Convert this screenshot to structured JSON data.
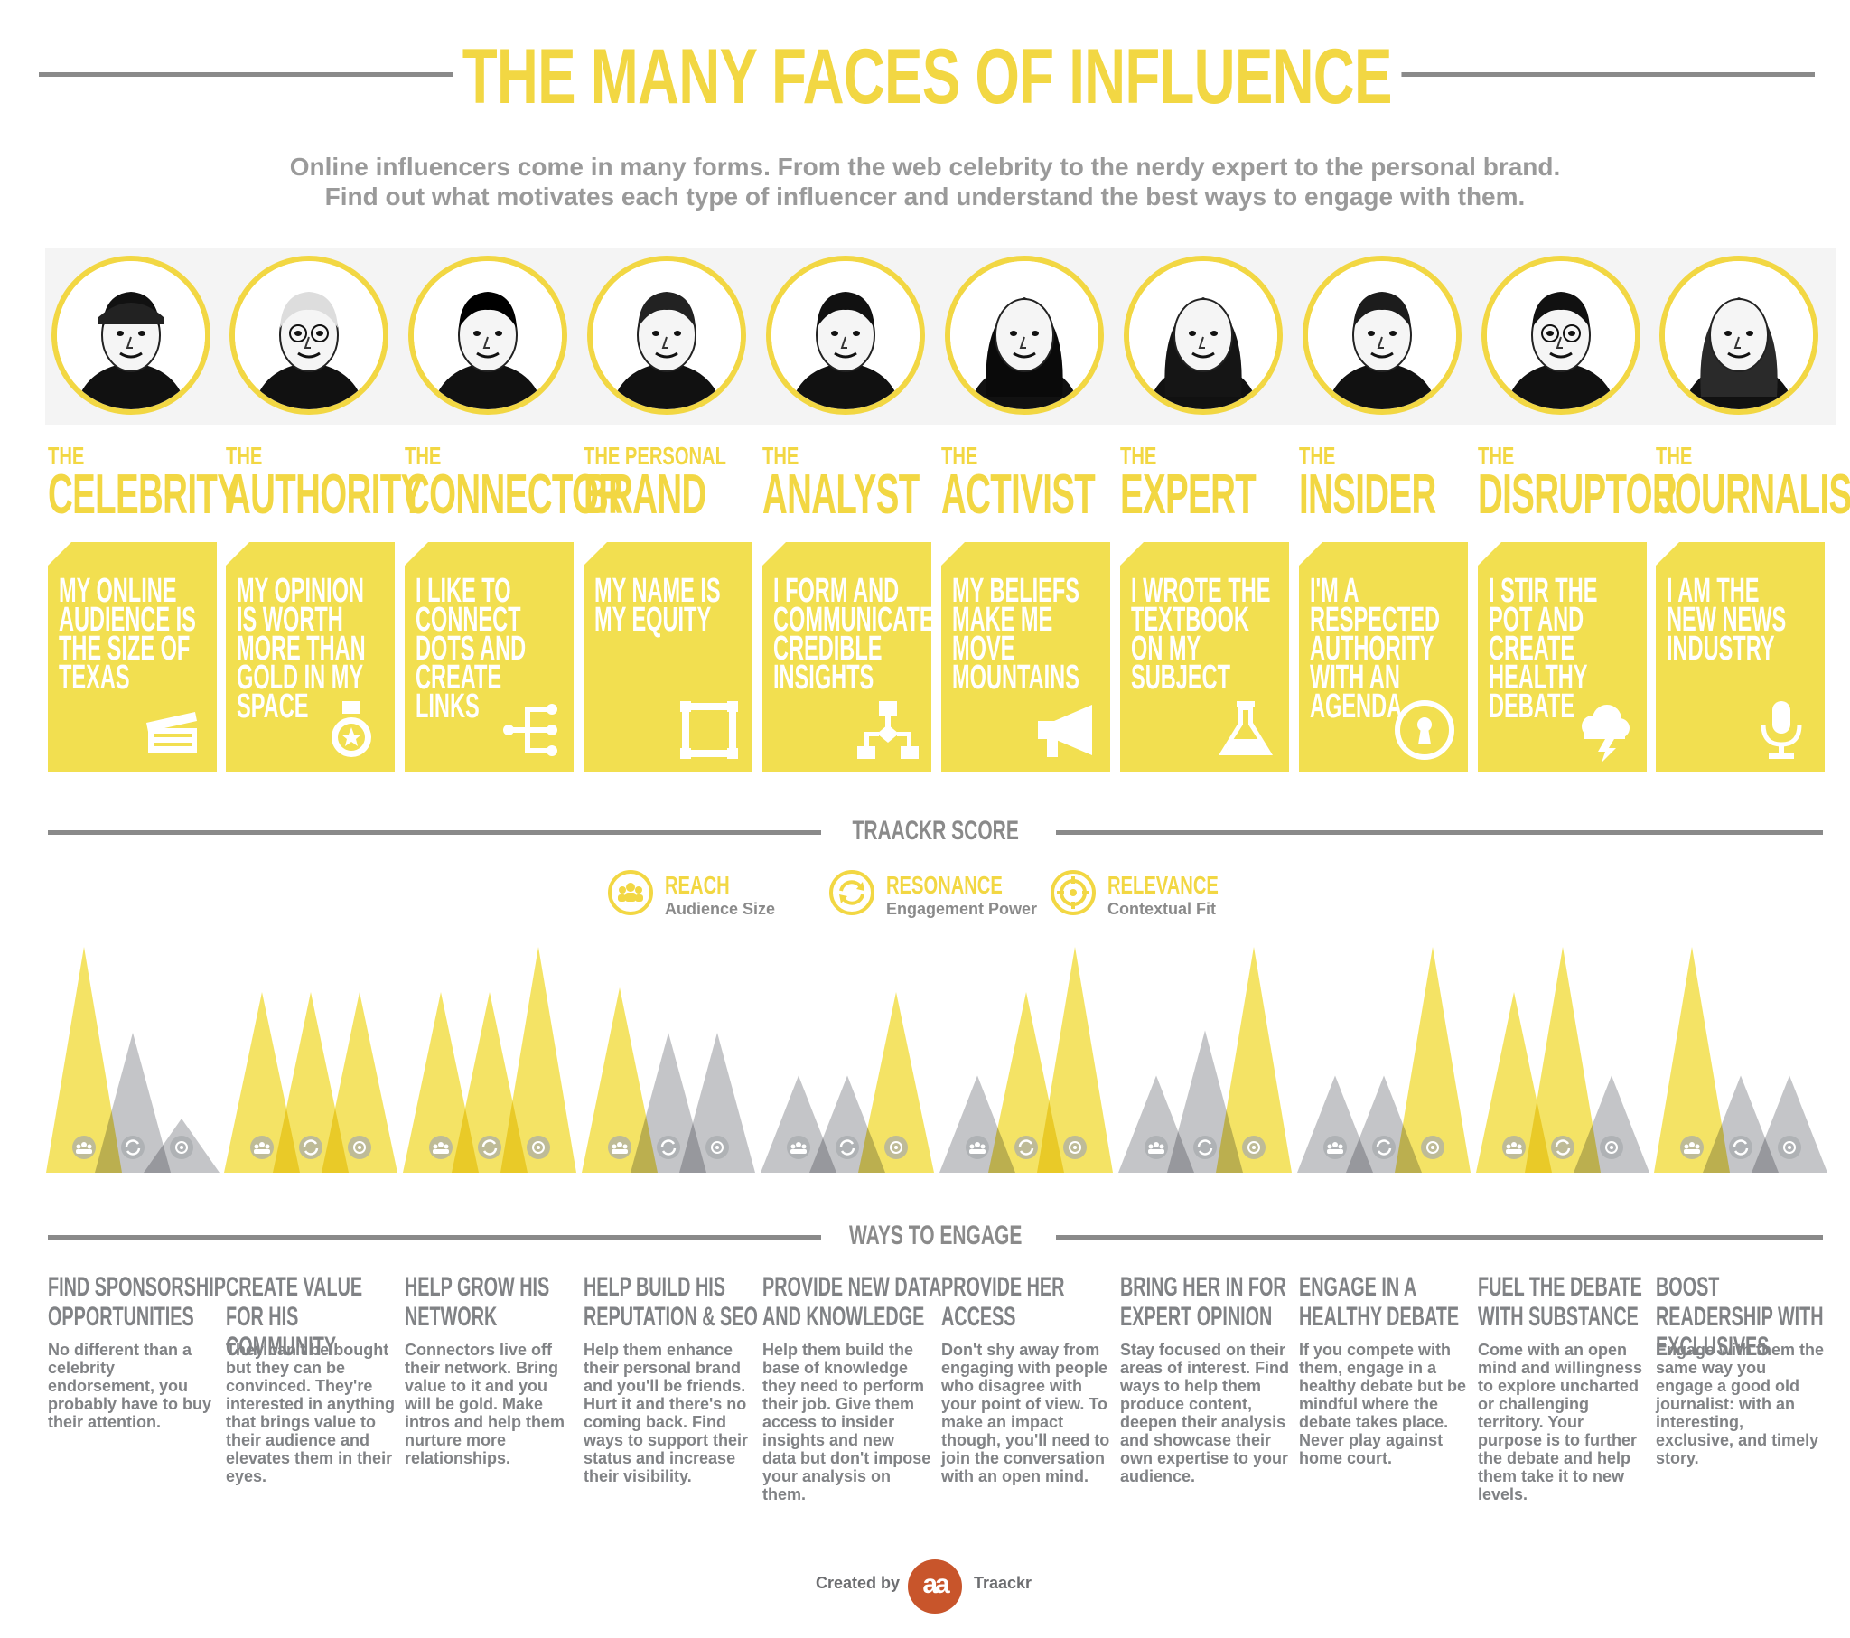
{
  "header": {
    "title": "THE MANY FACES OF INFLUENCE",
    "subtitle_line1": "Online influencers come in many forms. From the web celebrity to the nerdy expert to the personal brand.",
    "subtitle_line2": "Find out what motivates each type of influencer and understand the best ways to engage with them."
  },
  "colors": {
    "accent": "#f2d743",
    "card": "#f2df50",
    "gray": "#8a8a8a",
    "reach": "#f2d743",
    "resonance": "#bcbdc0",
    "relevance": "#bcbdc0",
    "logo": "#c8552b"
  },
  "types": [
    {
      "prefix": "THE",
      "name": "CELEBRITY",
      "quote": "MY ONLINE AUDIENCE IS THE SIZE OF TEXAS",
      "icon": "clapperboard-icon"
    },
    {
      "prefix": "THE",
      "name": "AUTHORITY",
      "quote": "MY OPINION IS WORTH MORE THAN GOLD IN MY SPACE",
      "icon": "medal-icon"
    },
    {
      "prefix": "THE",
      "name": "CONNECTOR",
      "quote": "I LIKE TO CONNECT DOTS AND CREATE LINKS",
      "icon": "network-icon"
    },
    {
      "prefix": "THE PERSONAL",
      "name": "BRAND",
      "quote": "MY NAME IS MY EQUITY",
      "icon": "frame-icon"
    },
    {
      "prefix": "THE",
      "name": "ANALYST",
      "quote": "I FORM AND COMMUNICATE CREDIBLE INSIGHTS",
      "icon": "flowchart-icon"
    },
    {
      "prefix": "THE",
      "name": "ACTIVIST",
      "quote": "MY BELIEFS MAKE ME MOVE MOUNTAINS",
      "icon": "megaphone-icon"
    },
    {
      "prefix": "THE",
      "name": "EXPERT",
      "quote": "I WROTE THE TEXTBOOK ON MY SUBJECT",
      "icon": "flask-icon"
    },
    {
      "prefix": "THE",
      "name": "INSIDER",
      "quote": "I'M A RESPECTED AUTHORITY WITH AN AGENDA",
      "icon": "keyhole-icon"
    },
    {
      "prefix": "THE",
      "name": "DISRUPTOR",
      "quote": "I STIR THE POT AND CREATE HEALTHY DEBATE",
      "icon": "storm-cloud-icon"
    },
    {
      "prefix": "THE",
      "name": "JOURNALIST",
      "quote": "I AM THE NEW NEWS INDUSTRY",
      "icon": "microphone-icon"
    }
  ],
  "score_section": {
    "heading": "TRAACKR SCORE",
    "legend": [
      {
        "name": "REACH",
        "sub": "Audience Size",
        "icon": "audience-icon"
      },
      {
        "name": "RESONANCE",
        "sub": "Engagement Power",
        "icon": "engagement-icon"
      },
      {
        "name": "RELEVANCE",
        "sub": "Contextual Fit",
        "icon": "target-icon"
      }
    ]
  },
  "chart_data": {
    "type": "area",
    "title": "TRAACKR SCORE",
    "categories": [
      "CELEBRITY",
      "AUTHORITY",
      "CONNECTOR",
      "PERSONAL BRAND",
      "ANALYST",
      "ACTIVIST",
      "EXPERT",
      "INSIDER",
      "DISRUPTOR",
      "JOURNALIST"
    ],
    "series": [
      {
        "name": "REACH",
        "values": [
          1.0,
          0.8,
          0.8,
          0.82,
          0.43,
          0.43,
          0.43,
          0.43,
          0.8,
          1.0
        ]
      },
      {
        "name": "RESONANCE",
        "values": [
          0.62,
          0.8,
          0.8,
          0.62,
          0.43,
          0.8,
          0.63,
          0.43,
          1.0,
          0.43
        ]
      },
      {
        "name": "RELEVANCE",
        "values": [
          0.24,
          0.8,
          1.0,
          0.62,
          0.8,
          1.0,
          1.0,
          1.0,
          0.43,
          0.43
        ]
      }
    ],
    "ylim": [
      0,
      1
    ],
    "grid": false,
    "legend": "top-center"
  },
  "engage_section": {
    "heading": "WAYS TO ENGAGE",
    "items": [
      {
        "title": "FIND SPONSORSHIP OPPORTUNITIES",
        "body": "No different than a celebrity endorsement, you probably have to buy their attention."
      },
      {
        "title": "CREATE VALUE FOR HIS COMMUNITY",
        "body": "They can't be bought but they can be convinced. They're interested in anything that brings value to their audience and elevates them in their eyes."
      },
      {
        "title": "HELP GROW HIS NETWORK",
        "body": "Connectors live off their network. Bring value to it and you will be gold. Make intros and help them nurture more relationships."
      },
      {
        "title": "HELP BUILD HIS REPUTATION & SEO",
        "body": "Help them enhance their personal brand and you'll be friends. Hurt it and there's no coming back. Find ways to support their status and increase their visibility."
      },
      {
        "title": "PROVIDE NEW DATA AND KNOWLEDGE",
        "body": "Help them build the base of knowledge they need to perform their job. Give them access to insider insights and new data but don't impose your analysis on them."
      },
      {
        "title": "PROVIDE HER ACCESS",
        "body": "Don't shy away from engaging with people who disagree with your point of view. To make an impact though, you'll need to join the conversation with an open mind."
      },
      {
        "title": "BRING HER IN FOR EXPERT OPINION",
        "body": "Stay focused on their areas of interest. Find ways to help them produce content, deepen their analysis and showcase their own expertise to your audience."
      },
      {
        "title": "ENGAGE IN A HEALTHY DEBATE",
        "body": "If you compete with them, engage in a healthy debate but be mindful where the debate takes place. Never  play against home court."
      },
      {
        "title": "FUEL THE DEBATE WITH SUBSTANCE",
        "body": "Come with an open mind and willingness to explore uncharted or challenging territory. Your purpose is to further the debate and help them take it to new levels."
      },
      {
        "title": "BOOST READERSHIP WITH EXCLUSIVES",
        "body": "Engage with them the same way you engage a good old journalist: with an interesting, exclusive, and timely story."
      }
    ]
  },
  "footer": {
    "created": "Created by",
    "logo": "aa",
    "brand": "Traackr"
  }
}
